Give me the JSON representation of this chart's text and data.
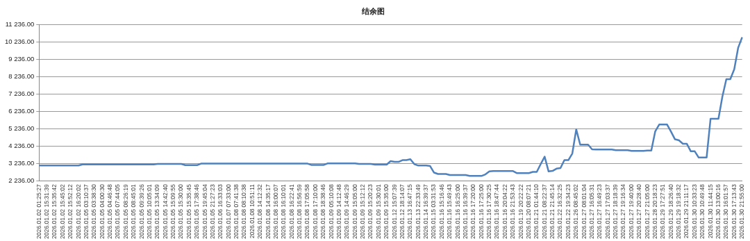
{
  "chart_data": {
    "type": "line",
    "title": "结余图",
    "categories": [
      "2026.01.02 01:25:27",
      null,
      "2026.01.02 15:31:39",
      null,
      "2026.01.02 15:35:42",
      null,
      "2026.01.02 15:45:02",
      null,
      "2026.01.02 15:52:12",
      null,
      "2026.01.02 16:20:02",
      null,
      "2026.01.05 03:10:37",
      null,
      "2026.01.05 03:38:30",
      null,
      "2026.01.05 04:00:30",
      null,
      "2026.01.05 04:46:48",
      null,
      "2026.01.05 07:44:05",
      null,
      "2026.01.05 08:26:19",
      null,
      "2026.01.05 08:45:01",
      null,
      "2026.01.05 09:39:26",
      null,
      "2026.01.05 10:05:01",
      null,
      "2026.01.05 13:34:09",
      null,
      "2026.01.05 14:42:40",
      null,
      "2026.01.05 15:09:55",
      null,
      "2026.01.05 15:30:00",
      null,
      "2026.01.05 15:35:45",
      null,
      "2026.01.05 17:38:46",
      null,
      "2026.01.05 19:45:04",
      null,
      "2026.01.05 21:27:23",
      null,
      "2026.01.06 16:33:03",
      null,
      "2026.01.07 07:33:00",
      null,
      "2026.01.08 07:41:38",
      null,
      "2026.01.08 08:10:38",
      null,
      "2026.01.08 10:51:11",
      null,
      "2026.01.08 14:12:32",
      null,
      "2026.01.08 14:35:17",
      null,
      "2026.01.08 16:00:07",
      null,
      "2026.01.08 16:10:01",
      null,
      "2026.01.08 16:22:41",
      null,
      "2026.01.08 16:56:59",
      null,
      "2026.01.08 17:05:58",
      null,
      "2026.01.08 17:10:00",
      null,
      "2026.01.08 18:38:46",
      null,
      "2026.01.09 05:10:08",
      null,
      "2026.01.09 14:12:48",
      null,
      "2026.01.09 14:46:29",
      null,
      "2026.01.09 15:05:00",
      null,
      "2026.01.09 15:12:12",
      null,
      "2026.01.09 15:20:23",
      null,
      "2026.01.09 15:30:01",
      null,
      "2026.01.09 15:35:00",
      null,
      "2026.01.12 15:07:39",
      null,
      "2026.01.12 18:14:07",
      null,
      "2026.01.13 16:47:15",
      null,
      "2026.01.13 22:33:49",
      null,
      "2026.01.14 16:39:37",
      null,
      "2026.01.15 03:31:53",
      null,
      "2026.01.16 15:16:46",
      null,
      "2026.01.16 15:49:43",
      null,
      "2026.01.16 16:25:00",
      null,
      "2026.01.16 16:39:37",
      null,
      "2026.01.16 17:20:00",
      null,
      "2026.01.16 17:25:00",
      null,
      "2026.01.16 17:30:25",
      null,
      "2026.01.16 18:47:44",
      null,
      "2026.01.16 20:04:22",
      null,
      "2026.01.16 21:53:43",
      null,
      "2026.01.19 20:22:22",
      null,
      "2026.01.20 08:07:21",
      null,
      "2026.01.21 01:44:10",
      null,
      "2026.01.21 08:22:37",
      null,
      "2026.01.21 21:45:14",
      null,
      "2026.01.22 16:32:25",
      null,
      "2026.01.22 19:34:23",
      null,
      "2026.01.26 08:45:02",
      null,
      "2026.01.27 08:01:04",
      null,
      "2026.01.27 16:05:31",
      null,
      "2026.01.27 16:49:23",
      null,
      "2026.01.27 17:03:37",
      null,
      "2026.01.27 18:18:39",
      null,
      "2026.01.27 19:16:34",
      null,
      "2026.01.27 19:40:00",
      null,
      "2026.01.27 20:28:40",
      null,
      "2026.01.27 21:05:00",
      null,
      "2026.01.28 20:18:23",
      null,
      "2026.01.29 17:27:51",
      null,
      "2026.01.29 18:26:40",
      null,
      "2026.01.29 19:18:32",
      null,
      "2026.01.29 21:11:17",
      null,
      "2026.01.30 10:33:23",
      null,
      "2026.01.30 10:49:48",
      null,
      "2026.01.30 11:44:15",
      null,
      "2026.01.30 13:00:16",
      null,
      "2026.01.30 16:01:57",
      null,
      "2026.01.30 17:13:43",
      null,
      "2026.01.30 21:55:00"
    ],
    "series": [
      {
        "color": "#4f81bd",
        "values": [
          3110,
          3110,
          3110,
          3110,
          3110,
          3110,
          3110,
          3110,
          3110,
          3110,
          3110,
          3170,
          3170,
          3170,
          3170,
          3170,
          3170,
          3170,
          3170,
          3170,
          3170,
          3170,
          3170,
          3170,
          3170,
          3170,
          3170,
          3170,
          3170,
          3170,
          3200,
          3200,
          3200,
          3200,
          3200,
          3200,
          3200,
          3130,
          3130,
          3130,
          3130,
          3220,
          3220,
          3220,
          3220,
          3220,
          3220,
          3220,
          3220,
          3220,
          3220,
          3220,
          3220,
          3220,
          3220,
          3220,
          3220,
          3220,
          3220,
          3220,
          3220,
          3220,
          3220,
          3220,
          3220,
          3220,
          3220,
          3220,
          3220,
          3140,
          3140,
          3140,
          3140,
          3230,
          3230,
          3230,
          3230,
          3230,
          3230,
          3230,
          3230,
          3200,
          3200,
          3200,
          3200,
          3160,
          3160,
          3160,
          3160,
          3360,
          3320,
          3320,
          3420,
          3420,
          3470,
          3190,
          3110,
          3110,
          3110,
          3080,
          2700,
          2620,
          2620,
          2620,
          2560,
          2560,
          2560,
          2560,
          2560,
          2510,
          2510,
          2510,
          2510,
          2600,
          2770,
          2790,
          2790,
          2790,
          2790,
          2790,
          2790,
          2670,
          2670,
          2670,
          2670,
          2740,
          2740,
          3190,
          3620,
          2770,
          2800,
          2930,
          2960,
          3420,
          3420,
          3800,
          5190,
          4310,
          4310,
          4310,
          4040,
          4030,
          4030,
          4030,
          4030,
          4030,
          3990,
          3990,
          3990,
          3990,
          3950,
          3950,
          3950,
          3950,
          3970,
          3970,
          5080,
          5470,
          5470,
          5470,
          5060,
          4620,
          4560,
          4360,
          4360,
          3930,
          3930,
          3570,
          3570,
          3570,
          5800,
          5800,
          5800,
          7080,
          8080,
          8080,
          8650,
          9900,
          10500
        ]
      }
    ],
    "ylim": [
      2236,
      11236
    ],
    "yticks": [
      {
        "value": 2236,
        "label": "2 236.00"
      },
      {
        "value": 3236,
        "label": "3 236.00"
      },
      {
        "value": 4236,
        "label": "4 236.00"
      },
      {
        "value": 5236,
        "label": "5 236.00"
      },
      {
        "value": 6236,
        "label": "6 236.00"
      },
      {
        "value": 7236,
        "label": "7 236.00"
      },
      {
        "value": 8236,
        "label": "8 236.00"
      },
      {
        "value": 9236,
        "label": "9 236.00"
      },
      {
        "value": 10236,
        "label": "10 236.00"
      },
      {
        "value": 11236,
        "label": "11 236.00"
      }
    ],
    "grid": "y",
    "legend": false
  }
}
